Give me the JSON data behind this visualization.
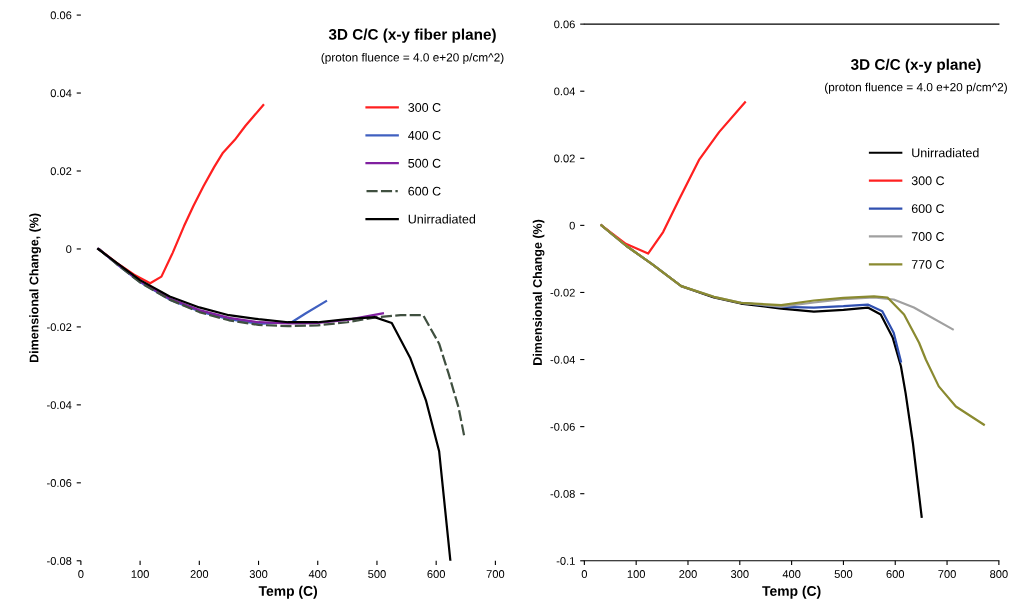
{
  "chart_data": [
    {
      "type": "line",
      "title": "3D C/C (x-y fiber plane)",
      "subtitle": "(proton fluence = 4.0 e+20 p/cm^2)",
      "xlabel": "Temp (C)",
      "ylabel": "Dimensional Change, (%)",
      "xlim": [
        0,
        700
      ],
      "xticks": [
        0,
        100,
        200,
        300,
        400,
        500,
        600,
        700
      ],
      "ylim": [
        -0.08,
        0.06
      ],
      "yticks": [
        -0.08,
        -0.06,
        -0.04,
        -0.02,
        0,
        0.02,
        0.04,
        0.06
      ],
      "grid": false,
      "legend": "top right",
      "marker": "none",
      "series": [
        {
          "name": "300 C",
          "color": "#ff2020",
          "line_style": "solid",
          "x": [
            30,
            60,
            90,
            117,
            136,
            155,
            174,
            190,
            207,
            225,
            240,
            260,
            278,
            308
          ],
          "values": [
            0,
            -0.0035,
            -0.0066,
            -0.0088,
            -0.0071,
            -0.001,
            0.0058,
            0.011,
            0.0161,
            0.021,
            0.0247,
            0.028,
            0.0316,
            0.0369
          ]
        },
        {
          "name": "400 C",
          "color": "#4060c0",
          "line_style": "solid",
          "x": [
            30,
            60,
            100,
            150,
            200,
            250,
            300,
            356,
            380,
            414
          ],
          "values": [
            0,
            -0.0038,
            -0.0085,
            -0.013,
            -0.016,
            -0.018,
            -0.0192,
            -0.0188,
            -0.0165,
            -0.0134
          ]
        },
        {
          "name": "500 C",
          "color": "#8020a0",
          "line_style": "solid",
          "x": [
            30,
            60,
            100,
            150,
            200,
            250,
            300,
            350,
            400,
            450,
            510
          ],
          "values": [
            0,
            -0.0037,
            -0.0083,
            -0.0127,
            -0.0157,
            -0.0177,
            -0.0188,
            -0.0191,
            -0.019,
            -0.0182,
            -0.0165
          ]
        },
        {
          "name": "600 C",
          "color": "#405040",
          "line_style": "dashed",
          "x": [
            30,
            60,
            100,
            150,
            200,
            250,
            300,
            350,
            400,
            450,
            500,
            540,
            578,
            605,
            621,
            638,
            648
          ],
          "values": [
            0,
            -0.0038,
            -0.0086,
            -0.013,
            -0.0162,
            -0.0183,
            -0.0195,
            -0.0198,
            -0.0196,
            -0.0188,
            -0.0175,
            -0.017,
            -0.017,
            -0.0243,
            -0.032,
            -0.0408,
            -0.0485
          ]
        },
        {
          "name": "Unirradiated",
          "color": "#000000",
          "line_style": "solid",
          "x": [
            29,
            60,
            100,
            150,
            200,
            250,
            300,
            350,
            400,
            450,
            496,
            525,
            556,
            583,
            605,
            624
          ],
          "values": [
            0,
            -0.0035,
            -0.008,
            -0.0122,
            -0.015,
            -0.017,
            -0.018,
            -0.0188,
            -0.0188,
            -0.018,
            -0.0175,
            -0.019,
            -0.0279,
            -0.039,
            -0.0519,
            -0.08
          ]
        }
      ]
    },
    {
      "type": "line",
      "title": "3D C/C (x-y plane)",
      "subtitle": "(proton fluence = 4.0 e+20 p/cm^2)",
      "xlabel": "Temp (C)",
      "ylabel": "Dimensional Change (%)",
      "xlim": [
        0,
        800
      ],
      "xticks": [
        0,
        100,
        200,
        300,
        400,
        500,
        600,
        700,
        800
      ],
      "ylim": [
        -0.1,
        0.06
      ],
      "yticks": [
        -0.1,
        -0.08,
        -0.06,
        -0.04,
        -0.02,
        0,
        0.02,
        0.04,
        0.06
      ],
      "grid": false,
      "legend": "top right",
      "marker": "none",
      "series": [
        {
          "name": "Unirradiated",
          "color": "#000000",
          "line_style": "solid",
          "x": [
            33,
            80,
            130,
            187,
            250,
            302,
            380,
            443,
            500,
            547,
            572,
            595,
            611,
            620,
            634,
            651
          ],
          "values": [
            0,
            -0.006,
            -0.0115,
            -0.0181,
            -0.0215,
            -0.0233,
            -0.0248,
            -0.0257,
            -0.0252,
            -0.0245,
            -0.0266,
            -0.0334,
            -0.042,
            -0.05,
            -0.0648,
            -0.0869
          ]
        },
        {
          "name": "300 C",
          "color": "#ff2020",
          "line_style": "solid",
          "x": [
            33,
            80,
            123,
            152,
            183,
            222,
            260,
            310
          ],
          "values": [
            0,
            -0.0055,
            -0.0084,
            -0.002,
            0.0078,
            0.0197,
            0.0278,
            0.0367
          ]
        },
        {
          "name": "600 C",
          "color": "#3050b0",
          "line_style": "solid",
          "x": [
            302,
            380,
            443,
            500,
            547,
            575,
            597,
            611
          ],
          "values": [
            -0.0231,
            -0.0243,
            -0.0245,
            -0.0241,
            -0.0236,
            -0.0256,
            -0.032,
            -0.0406
          ]
        },
        {
          "name": "700 C",
          "color": "#a0a0a0",
          "line_style": "solid",
          "x": [
            33,
            80,
            130,
            187,
            250,
            302,
            380,
            443,
            500,
            559,
            597,
            636,
            711
          ],
          "values": [
            0,
            -0.006,
            -0.0115,
            -0.0181,
            -0.0213,
            -0.0231,
            -0.0242,
            -0.023,
            -0.022,
            -0.0215,
            -0.0221,
            -0.0245,
            -0.031
          ]
        },
        {
          "name": "770 C",
          "color": "#8a8a30",
          "line_style": "solid",
          "x": [
            33,
            80,
            130,
            187,
            250,
            302,
            380,
            443,
            500,
            559,
            585,
            617,
            646,
            659,
            684,
            717,
            771
          ],
          "values": [
            0,
            -0.006,
            -0.0115,
            -0.0181,
            -0.0213,
            -0.0231,
            -0.0238,
            -0.0224,
            -0.0216,
            -0.0212,
            -0.0215,
            -0.0266,
            -0.035,
            -0.04,
            -0.048,
            -0.054,
            -0.0594
          ]
        }
      ]
    }
  ]
}
